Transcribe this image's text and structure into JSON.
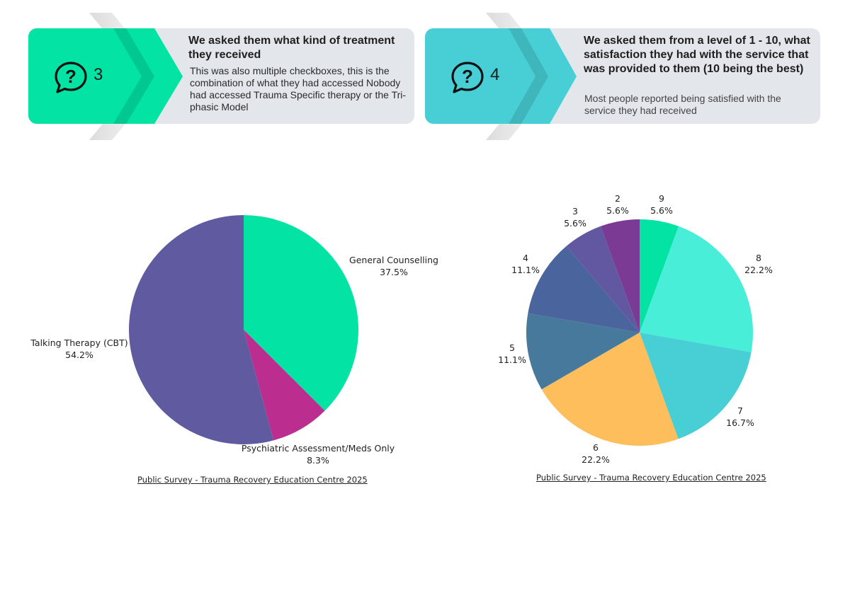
{
  "cards": [
    {
      "number": "3",
      "title": "We asked them what kind of treatment they received",
      "description": "This was also multiple checkboxes, this is the combination of what they had accessed Nobody had accessed Trauma Specific therapy or the Tri-phasic Model",
      "accent": "#02e3a4",
      "icon": "question-bubble-icon"
    },
    {
      "number": "4",
      "title": "We asked them from a level of 1 - 10, what satisfaction they had with the service that was provided to them (10 being the best)",
      "description": "Most people reported being satisfied with the service they had received",
      "accent": "#48cfd6",
      "icon": "question-bubble-icon"
    }
  ],
  "chart_data": [
    {
      "type": "pie",
      "slices": [
        {
          "label": "General Counselling",
          "value": 37.5,
          "value_label": "37.5%",
          "color": "#02e3a4"
        },
        {
          "label": "Psychiatric Assessment/Meds Only",
          "value": 8.3,
          "value_label": "8.3%",
          "color": "#bb2d8e"
        },
        {
          "label": "Talking Therapy (CBT)",
          "value": 54.2,
          "value_label": "54.2%",
          "color": "#605aa1"
        }
      ],
      "source": "Public Survey - Trauma Recovery Education Centre 2025"
    },
    {
      "type": "pie",
      "slices": [
        {
          "label": "9",
          "value": 5.6,
          "value_label": "5.6%",
          "color": "#02e3a4"
        },
        {
          "label": "8",
          "value": 22.2,
          "value_label": "22.2%",
          "color": "#48eed8"
        },
        {
          "label": "7",
          "value": 16.7,
          "value_label": "16.7%",
          "color": "#48cfd6"
        },
        {
          "label": "6",
          "value": 22.2,
          "value_label": "22.2%",
          "color": "#fdbe5b"
        },
        {
          "label": "5",
          "value": 11.1,
          "value_label": "11.1%",
          "color": "#46799c"
        },
        {
          "label": "4",
          "value": 11.1,
          "value_label": "11.1%",
          "color": "#4a649d"
        },
        {
          "label": "3",
          "value": 5.6,
          "value_label": "5.6%",
          "color": "#6257a1"
        },
        {
          "label": "2",
          "value": 5.6,
          "value_label": "5.6%",
          "color": "#7b3b95"
        }
      ],
      "source": "Public Survey - Trauma Recovery Education Centre 2025"
    }
  ]
}
